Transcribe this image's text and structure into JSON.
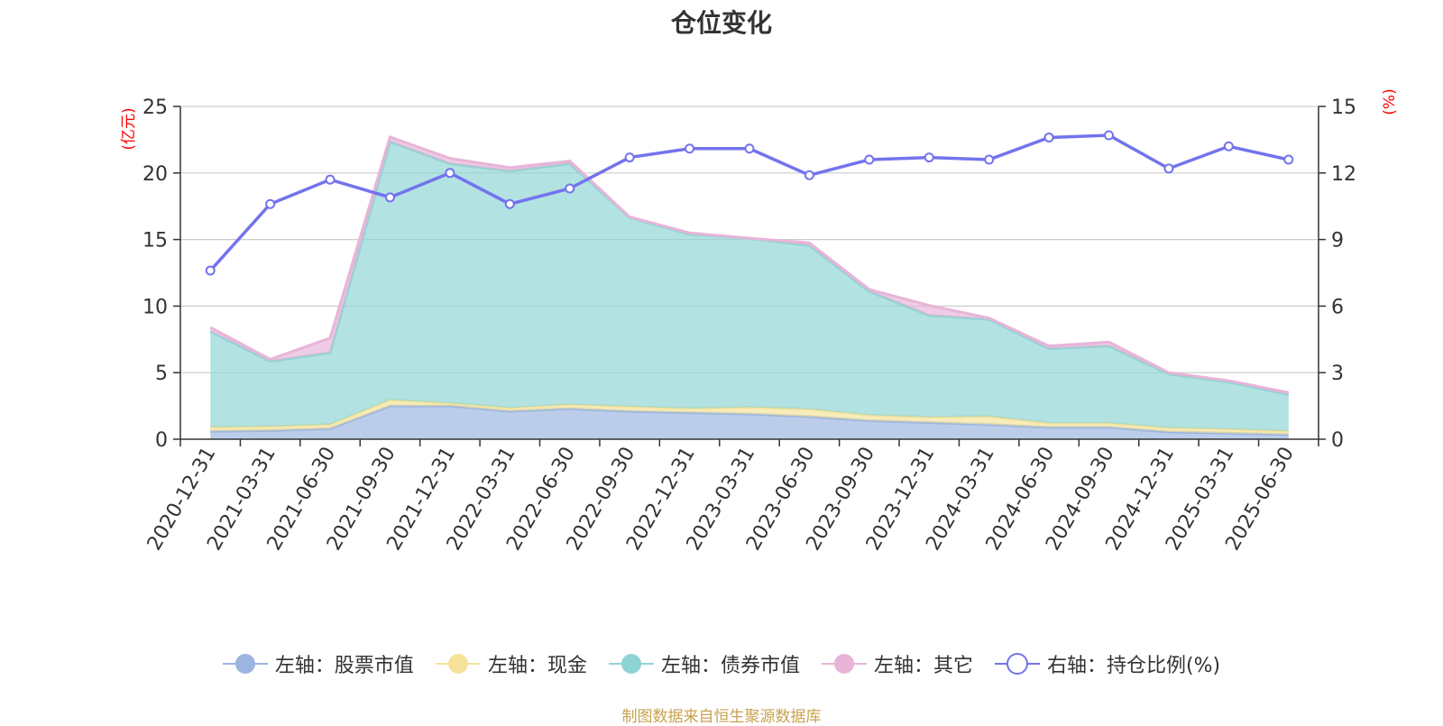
{
  "chart_data": {
    "type": "area",
    "title": "仓位变化",
    "y_left_unit": "(亿元)",
    "y_right_unit": "(%)",
    "x": [
      "2020-12-31",
      "2021-03-31",
      "2021-06-30",
      "2021-09-30",
      "2021-12-31",
      "2022-03-31",
      "2022-06-30",
      "2022-09-30",
      "2022-12-31",
      "2023-03-31",
      "2023-06-30",
      "2023-09-30",
      "2023-12-31",
      "2024-03-31",
      "2024-06-30",
      "2024-09-30",
      "2024-12-31",
      "2025-03-31",
      "2025-06-30"
    ],
    "y_left_lim": [
      0,
      25
    ],
    "y_left_ticks": [
      0,
      5,
      10,
      15,
      20,
      25
    ],
    "y_right_lim": [
      0,
      15
    ],
    "y_right_ticks": [
      0,
      3,
      6,
      9,
      12,
      15
    ],
    "grid": true,
    "stacked": true,
    "series": [
      {
        "name": "左轴：股票市值",
        "axis": "left",
        "color": "#9bb5e0",
        "values": [
          0.6,
          0.65,
          0.8,
          2.5,
          2.5,
          2.1,
          2.3,
          2.1,
          2.0,
          1.9,
          1.7,
          1.4,
          1.25,
          1.1,
          0.9,
          0.9,
          0.55,
          0.45,
          0.35
        ]
      },
      {
        "name": "左轴：现金",
        "axis": "left",
        "color": "#f5e39a",
        "values": [
          0.3,
          0.3,
          0.3,
          0.45,
          0.2,
          0.25,
          0.3,
          0.35,
          0.3,
          0.5,
          0.55,
          0.4,
          0.4,
          0.6,
          0.3,
          0.3,
          0.3,
          0.3,
          0.25
        ]
      },
      {
        "name": "左轴：债券市值",
        "axis": "left",
        "color": "#8fd4d4",
        "values": [
          7.2,
          4.9,
          5.4,
          19.4,
          18.0,
          17.8,
          18.1,
          14.2,
          13.1,
          12.7,
          12.3,
          9.3,
          7.65,
          7.3,
          5.6,
          5.8,
          4.05,
          3.55,
          2.75
        ]
      },
      {
        "name": "左轴：其它",
        "axis": "left",
        "color": "#e8b4d8",
        "values": [
          0.3,
          0.15,
          1.1,
          0.35,
          0.4,
          0.25,
          0.2,
          0.05,
          0.1,
          0.0,
          0.2,
          0.15,
          0.75,
          0.1,
          0.2,
          0.3,
          0.1,
          0.1,
          0.15
        ]
      },
      {
        "name": "右轴：持仓比例(%)",
        "axis": "right",
        "color": "#7373ee",
        "values": [
          7.6,
          10.6,
          11.7,
          10.9,
          12.0,
          10.6,
          11.3,
          12.7,
          13.1,
          13.1,
          11.9,
          12.6,
          12.7,
          12.6,
          13.6,
          13.7,
          12.2,
          13.2,
          12.6
        ]
      }
    ]
  },
  "source_note": "制图数据来自恒生聚源数据库"
}
